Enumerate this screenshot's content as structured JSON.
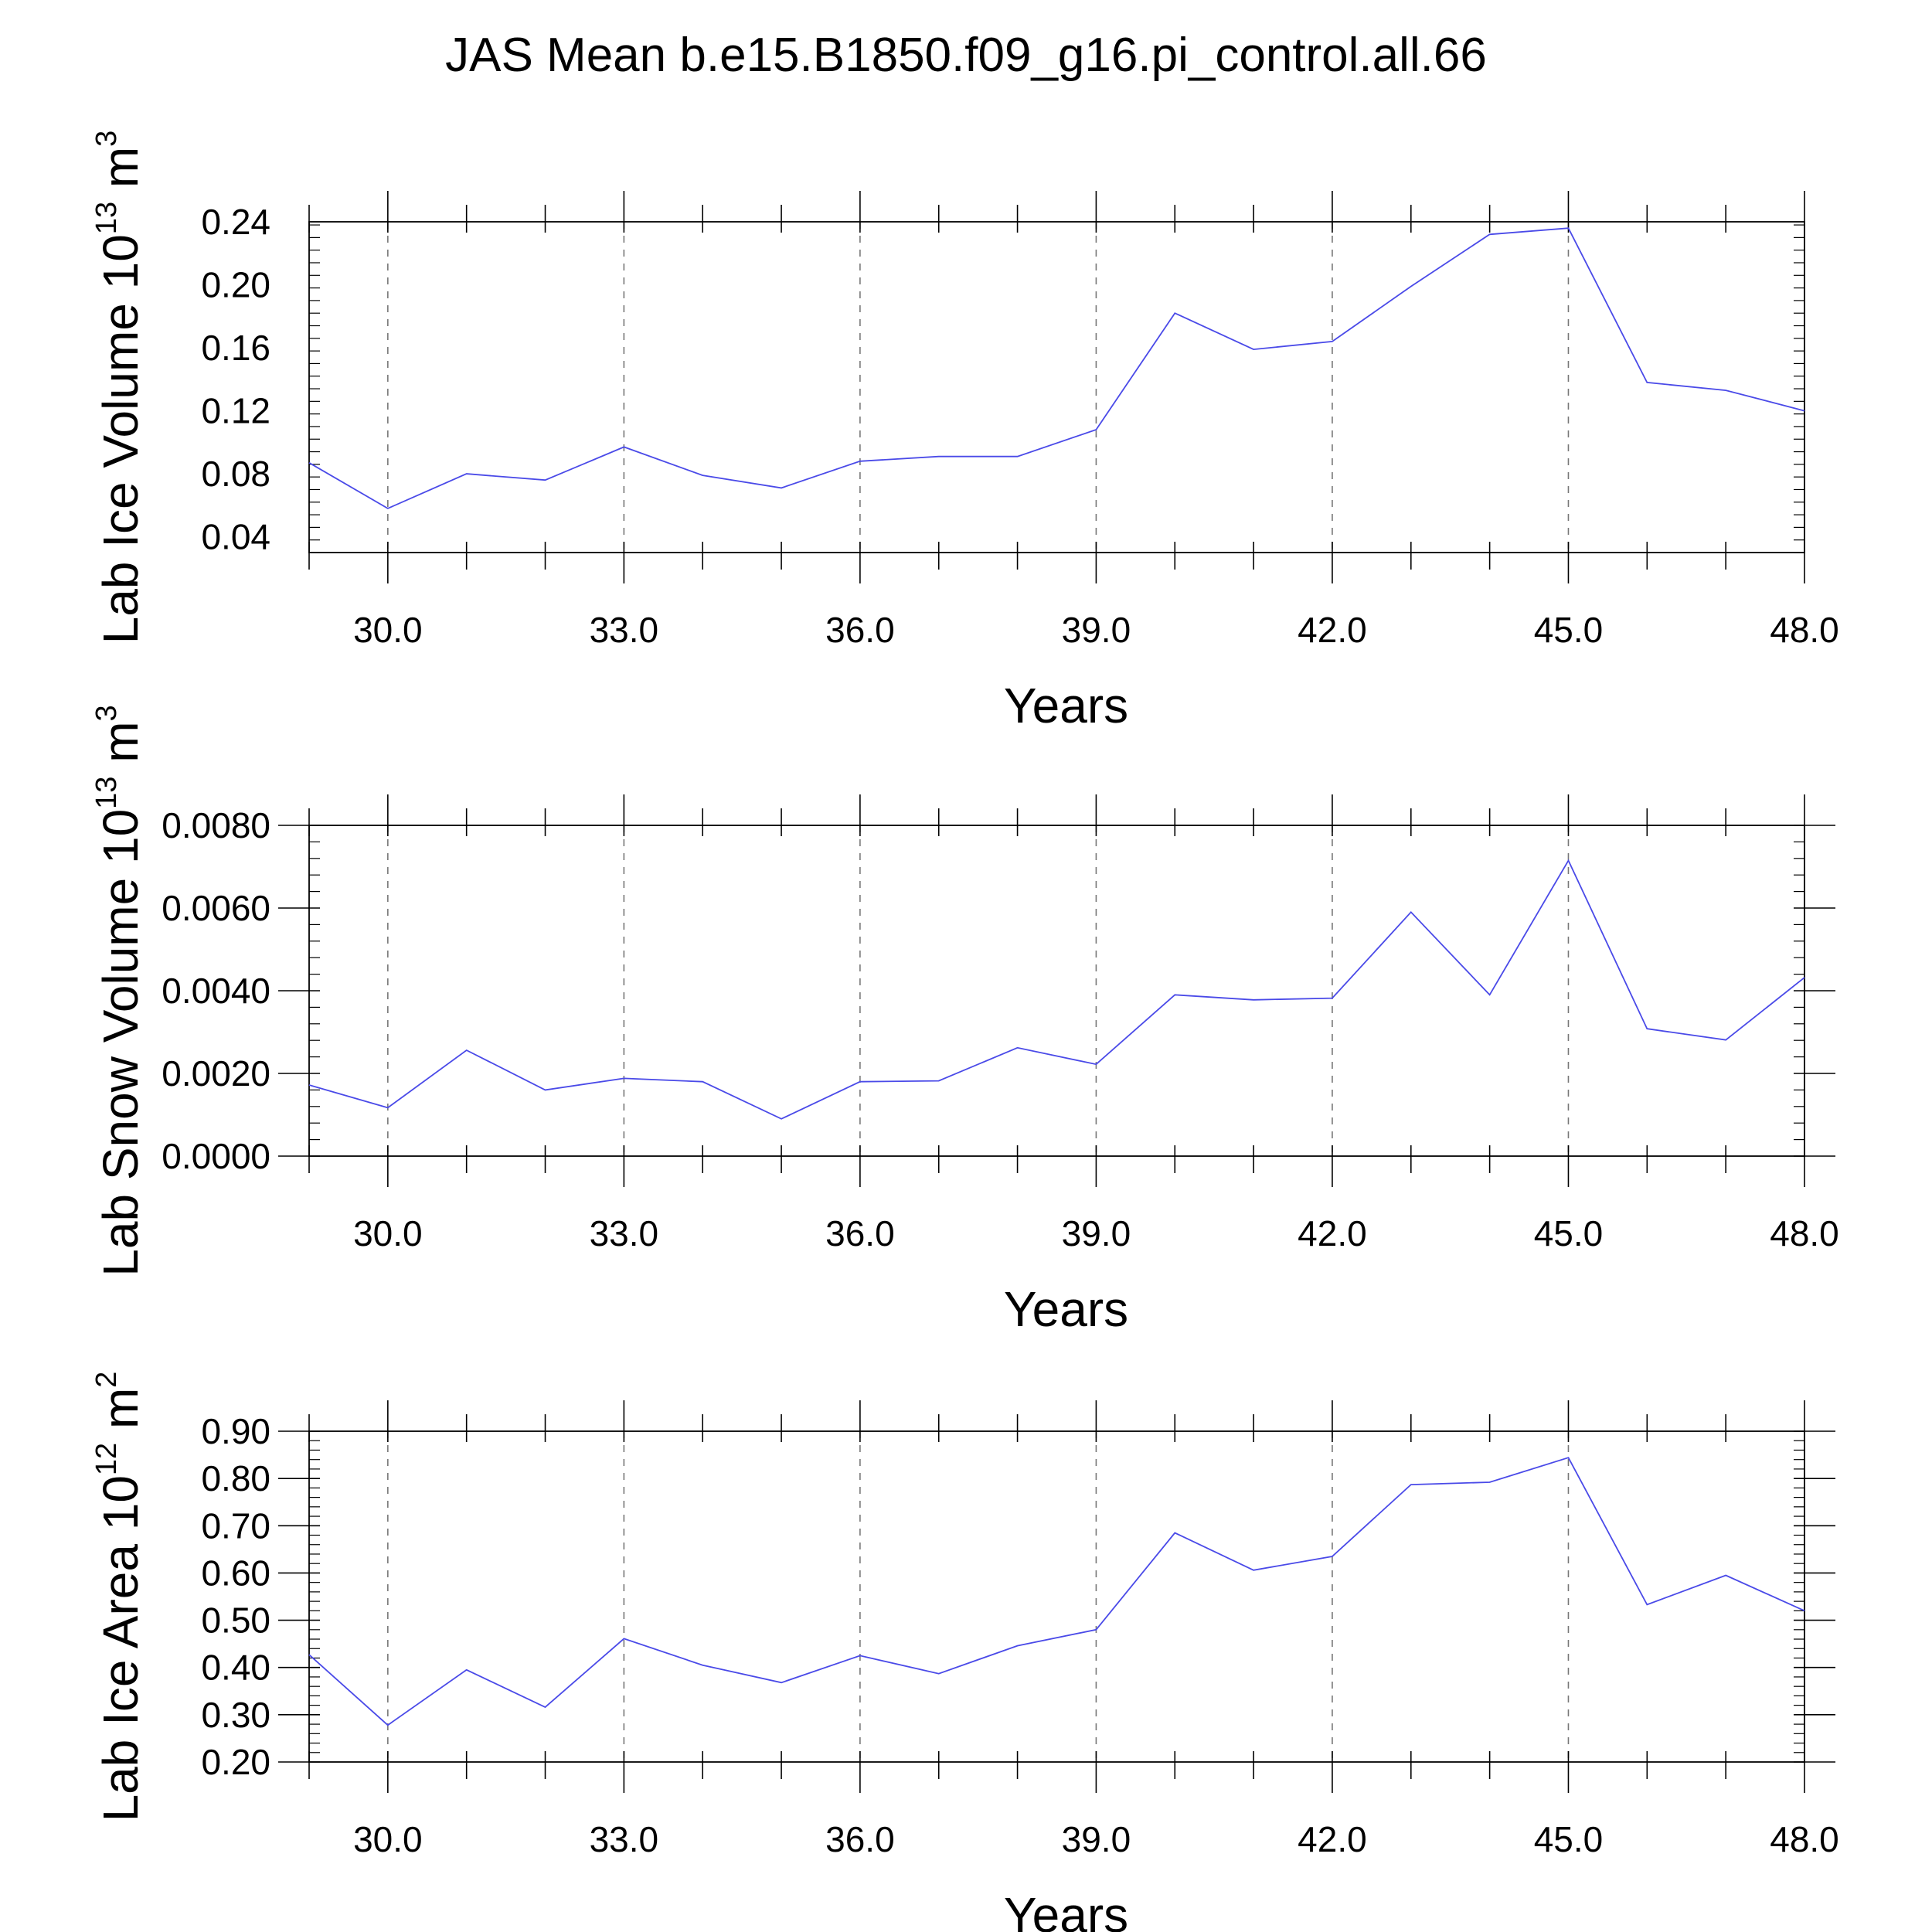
{
  "title": "JAS Mean b.e15.B1850.f09_g16.pi_control.all.66",
  "style": {
    "line_color": "#4a4ae8",
    "axis_color": "#000000",
    "grid_color": "#777777"
  },
  "chart_data": [
    {
      "type": "line",
      "ylabel": {
        "text": "Lab Ice Volume 10",
        "exp1": "13",
        "unit": " m",
        "exp2": "3"
      },
      "xlabel": "Years",
      "xlim": [
        29,
        48
      ],
      "ylim": [
        0.03,
        0.24
      ],
      "xticks": [
        30,
        33,
        36,
        39,
        42,
        45,
        48
      ],
      "xtick_labels": [
        "30.0",
        "33.0",
        "36.0",
        "39.0",
        "42.0",
        "45.0",
        "48.0"
      ],
      "yticks": [
        0.04,
        0.08,
        0.12,
        0.16,
        0.2,
        0.24
      ],
      "ytick_labels": [
        "0.04",
        "0.08",
        "0.12",
        "0.16",
        "0.20",
        "0.24"
      ],
      "grid": "vertical dashed at x ticks",
      "x": [
        29,
        30,
        31,
        32,
        33,
        34,
        35,
        36,
        37,
        38,
        39,
        40,
        41,
        42,
        43,
        44,
        45,
        46,
        47,
        48
      ],
      "values": [
        0.087,
        0.058,
        0.08,
        0.076,
        0.097,
        0.079,
        0.071,
        0.088,
        0.091,
        0.091,
        0.108,
        0.182,
        0.159,
        0.164,
        0.199,
        0.232,
        0.236,
        0.138,
        0.133,
        0.12
      ]
    },
    {
      "type": "line",
      "ylabel": {
        "text": "Lab Snow Volume 10",
        "exp1": "13",
        "unit": " m",
        "exp2": "3"
      },
      "xlabel": "Years",
      "xlim": [
        29,
        48
      ],
      "ylim": [
        0.0,
        0.008
      ],
      "xticks": [
        30,
        33,
        36,
        39,
        42,
        45,
        48
      ],
      "xtick_labels": [
        "30.0",
        "33.0",
        "36.0",
        "39.0",
        "42.0",
        "45.0",
        "48.0"
      ],
      "yticks": [
        0.0,
        0.002,
        0.004,
        0.006,
        0.008
      ],
      "ytick_labels": [
        "0.0000",
        "0.0020",
        "0.0040",
        "0.0060",
        "0.0080"
      ],
      "grid": "vertical dashed at x ticks",
      "x": [
        29,
        30,
        31,
        32,
        33,
        34,
        35,
        36,
        37,
        38,
        39,
        40,
        41,
        42,
        43,
        44,
        45,
        46,
        47,
        48
      ],
      "values": [
        0.00172,
        0.00117,
        0.00256,
        0.0016,
        0.00188,
        0.0018,
        0.0009,
        0.0018,
        0.00182,
        0.00262,
        0.00222,
        0.0039,
        0.00378,
        0.00382,
        0.0059,
        0.0039,
        0.00715,
        0.00308,
        0.00281,
        0.00432
      ]
    },
    {
      "type": "line",
      "ylabel": {
        "text": "Lab Ice Area 10",
        "exp1": "12",
        "unit": " m",
        "exp2": "2"
      },
      "xlabel": "Years",
      "xlim": [
        29,
        48
      ],
      "ylim": [
        0.2,
        0.9
      ],
      "xticks": [
        30,
        33,
        36,
        39,
        42,
        45,
        48
      ],
      "xtick_labels": [
        "30.0",
        "33.0",
        "36.0",
        "39.0",
        "42.0",
        "45.0",
        "48.0"
      ],
      "yticks": [
        0.2,
        0.3,
        0.4,
        0.5,
        0.6,
        0.7,
        0.8,
        0.9
      ],
      "ytick_labels": [
        "0.20",
        "0.30",
        "0.40",
        "0.50",
        "0.60",
        "0.70",
        "0.80",
        "0.90"
      ],
      "grid": "vertical dashed at x ticks",
      "x": [
        29,
        30,
        31,
        32,
        33,
        34,
        35,
        36,
        37,
        38,
        39,
        40,
        41,
        42,
        43,
        44,
        45,
        46,
        47,
        48
      ],
      "values": [
        0.427,
        0.278,
        0.395,
        0.316,
        0.461,
        0.405,
        0.368,
        0.425,
        0.387,
        0.446,
        0.48,
        0.685,
        0.606,
        0.635,
        0.787,
        0.792,
        0.844,
        0.533,
        0.595,
        0.52
      ]
    }
  ]
}
